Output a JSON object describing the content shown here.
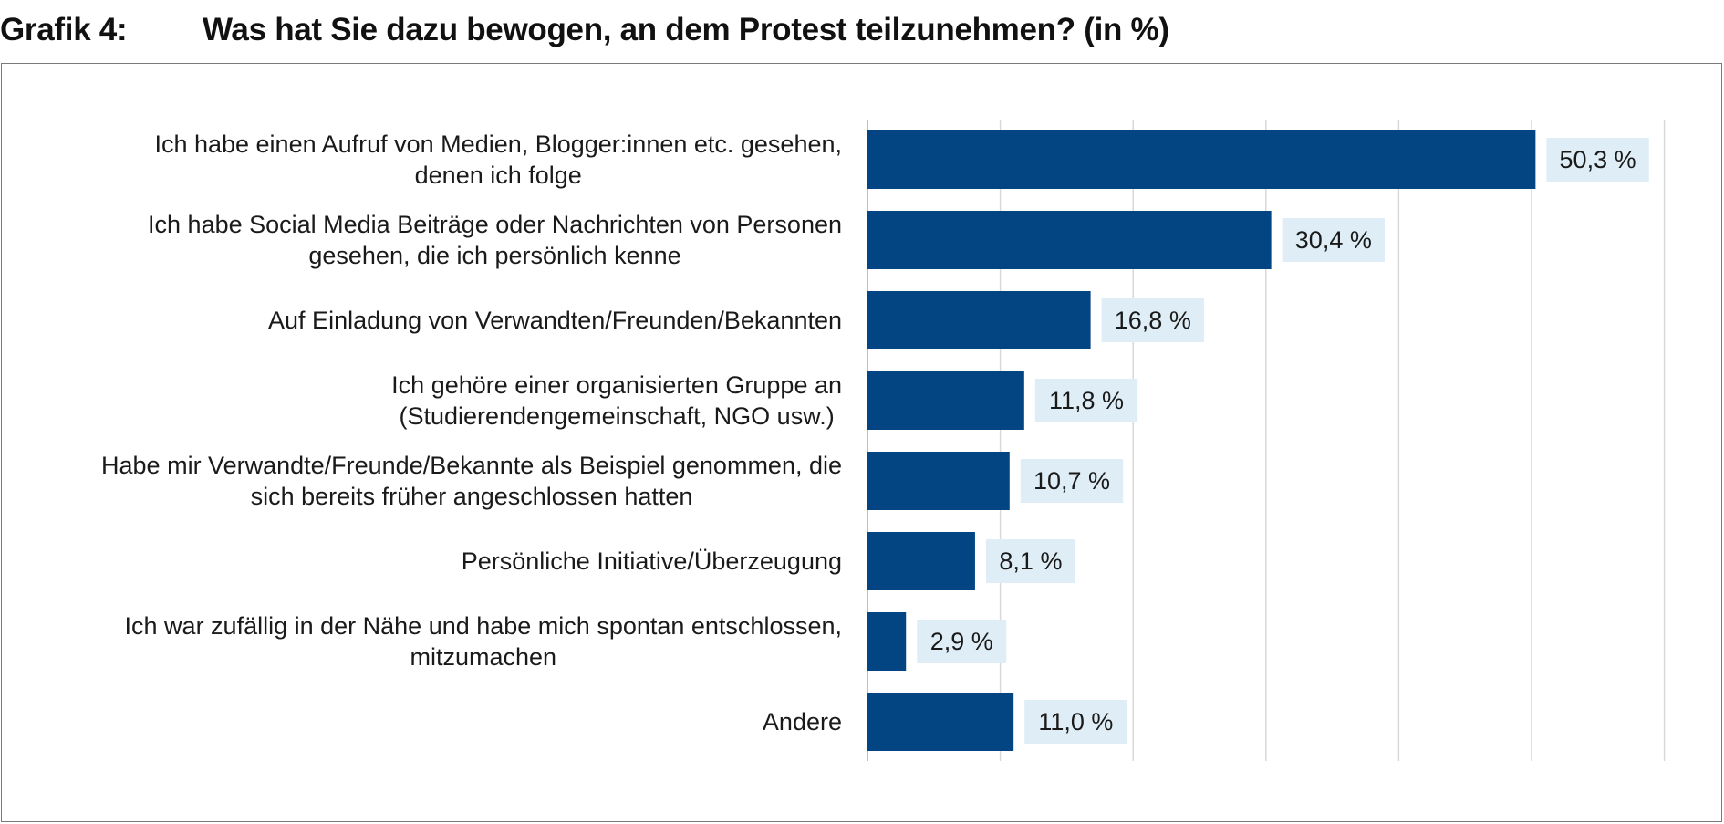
{
  "figure": {
    "label": "Grafik 4:",
    "title": "Was hat Sie dazu bewogen, an dem Protest teilzunehmen? (in %)"
  },
  "chart_data": {
    "type": "bar",
    "orientation": "horizontal",
    "title": "Was hat Sie dazu bewogen, an dem Protest teilzunehmen? (in %)",
    "xlabel": "",
    "ylabel": "",
    "xlim": [
      0,
      60
    ],
    "grid": true,
    "value_suffix": " %",
    "categories": [
      [
        "Ich habe einen Aufruf von Medien, Blogger:innen etc. gesehen,",
        "denen ich folge"
      ],
      [
        "Ich habe Social Media Beiträge oder Nachrichten von Personen",
        "gesehen, die ich persönlich kenne"
      ],
      [
        "Auf Einladung von Verwandten/Freunden/Bekannten"
      ],
      [
        "Ich gehöre einer organisierten Gruppe an",
        "(Studierendengemeinschaft, NGO usw.)"
      ],
      [
        "Habe mir Verwandte/Freunde/Bekannte als Beispiel genommen, die",
        "sich bereits früher angeschlossen hatten"
      ],
      [
        "Persönliche Initiative/Überzeugung"
      ],
      [
        "Ich war zufällig in der Nähe und habe mich spontan entschlossen,",
        "mitzumachen"
      ],
      [
        "Andere"
      ]
    ],
    "values": [
      50.3,
      30.4,
      16.8,
      11.8,
      10.7,
      8.1,
      2.9,
      11.0
    ],
    "value_labels": [
      "50,3 %",
      "30,4 %",
      "16,8 %",
      "11,8 %",
      "10,7 %",
      "8,1 %",
      "2,9 %",
      "11,0 %"
    ],
    "colors": {
      "bar": "#034582",
      "label_bg": "#dfeef6",
      "grid": "#d9d9d9",
      "axis": "#bfbfbf"
    }
  }
}
